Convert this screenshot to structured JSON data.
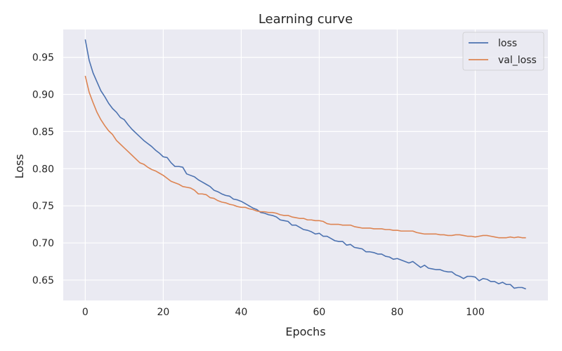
{
  "chart_data": {
    "type": "line",
    "title": "Learning curve",
    "xlabel": "Epochs",
    "ylabel": "Loss",
    "xlim": [
      -5.65,
      118.65
    ],
    "ylim": [
      0.6225,
      0.9875
    ],
    "xticks": [
      0,
      20,
      40,
      60,
      80,
      100
    ],
    "yticks": [
      0.65,
      0.7,
      0.75,
      0.8,
      0.85,
      0.9,
      0.95
    ],
    "ytick_labels": [
      "0.65",
      "0.70",
      "0.75",
      "0.80",
      "0.85",
      "0.90",
      "0.95"
    ],
    "grid": true,
    "legend_position": "top-right",
    "background": "#eaeaf2",
    "series": [
      {
        "name": "loss",
        "color": "#4c72b0",
        "values": [
          0.974,
          0.946,
          0.929,
          0.917,
          0.905,
          0.897,
          0.888,
          0.881,
          0.876,
          0.869,
          0.866,
          0.859,
          0.853,
          0.848,
          0.843,
          0.838,
          0.834,
          0.83,
          0.825,
          0.821,
          0.816,
          0.815,
          0.808,
          0.803,
          0.803,
          0.802,
          0.793,
          0.791,
          0.789,
          0.785,
          0.782,
          0.779,
          0.776,
          0.771,
          0.769,
          0.766,
          0.764,
          0.763,
          0.759,
          0.758,
          0.756,
          0.753,
          0.75,
          0.747,
          0.745,
          0.741,
          0.74,
          0.738,
          0.737,
          0.735,
          0.731,
          0.73,
          0.729,
          0.724,
          0.724,
          0.721,
          0.718,
          0.717,
          0.715,
          0.712,
          0.713,
          0.709,
          0.709,
          0.706,
          0.703,
          0.702,
          0.702,
          0.697,
          0.698,
          0.694,
          0.693,
          0.692,
          0.688,
          0.688,
          0.687,
          0.685,
          0.685,
          0.682,
          0.681,
          0.678,
          0.679,
          0.677,
          0.675,
          0.673,
          0.675,
          0.671,
          0.667,
          0.67,
          0.666,
          0.665,
          0.664,
          0.664,
          0.662,
          0.661,
          0.661,
          0.657,
          0.655,
          0.652,
          0.655,
          0.655,
          0.654,
          0.649,
          0.652,
          0.651,
          0.648,
          0.648,
          0.645,
          0.647,
          0.644,
          0.644,
          0.639,
          0.64,
          0.64,
          0.638
        ]
      },
      {
        "name": "val_loss",
        "color": "#dd8452",
        "values": [
          0.925,
          0.903,
          0.889,
          0.876,
          0.866,
          0.858,
          0.851,
          0.846,
          0.838,
          0.833,
          0.828,
          0.823,
          0.818,
          0.813,
          0.808,
          0.806,
          0.802,
          0.799,
          0.797,
          0.794,
          0.791,
          0.787,
          0.783,
          0.781,
          0.779,
          0.776,
          0.775,
          0.774,
          0.771,
          0.766,
          0.766,
          0.765,
          0.761,
          0.76,
          0.757,
          0.755,
          0.754,
          0.752,
          0.751,
          0.749,
          0.748,
          0.748,
          0.746,
          0.745,
          0.743,
          0.742,
          0.742,
          0.741,
          0.741,
          0.74,
          0.738,
          0.737,
          0.737,
          0.735,
          0.734,
          0.733,
          0.733,
          0.731,
          0.731,
          0.73,
          0.73,
          0.729,
          0.726,
          0.725,
          0.725,
          0.725,
          0.724,
          0.724,
          0.724,
          0.722,
          0.721,
          0.72,
          0.72,
          0.72,
          0.719,
          0.719,
          0.719,
          0.718,
          0.718,
          0.717,
          0.717,
          0.716,
          0.716,
          0.716,
          0.716,
          0.714,
          0.713,
          0.712,
          0.712,
          0.712,
          0.712,
          0.711,
          0.711,
          0.71,
          0.71,
          0.711,
          0.711,
          0.71,
          0.709,
          0.709,
          0.708,
          0.709,
          0.71,
          0.71,
          0.709,
          0.708,
          0.707,
          0.707,
          0.707,
          0.708,
          0.707,
          0.708,
          0.707,
          0.707
        ]
      }
    ]
  }
}
